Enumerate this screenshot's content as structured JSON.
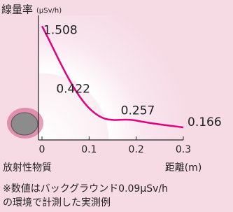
{
  "chart_data": {
    "type": "line",
    "title": "線量率",
    "y_unit": "(μSv/h)",
    "x_label": "距離(m)",
    "origin_label": "放射性物質",
    "x": [
      0,
      0.1,
      0.2,
      0.3
    ],
    "series": [
      {
        "color": "#e4007f",
        "values": [
          1.508,
          0.422,
          0.257,
          0.166
        ]
      }
    ],
    "xlim": [
      0,
      0.3
    ],
    "xticks": [
      0,
      0.1,
      0.2,
      0.3
    ],
    "ylim": [
      0,
      1.65
    ],
    "note": [
      "※数値はバックグラウンド0.09μSv/h",
      "の環境で計測した実測例"
    ]
  }
}
